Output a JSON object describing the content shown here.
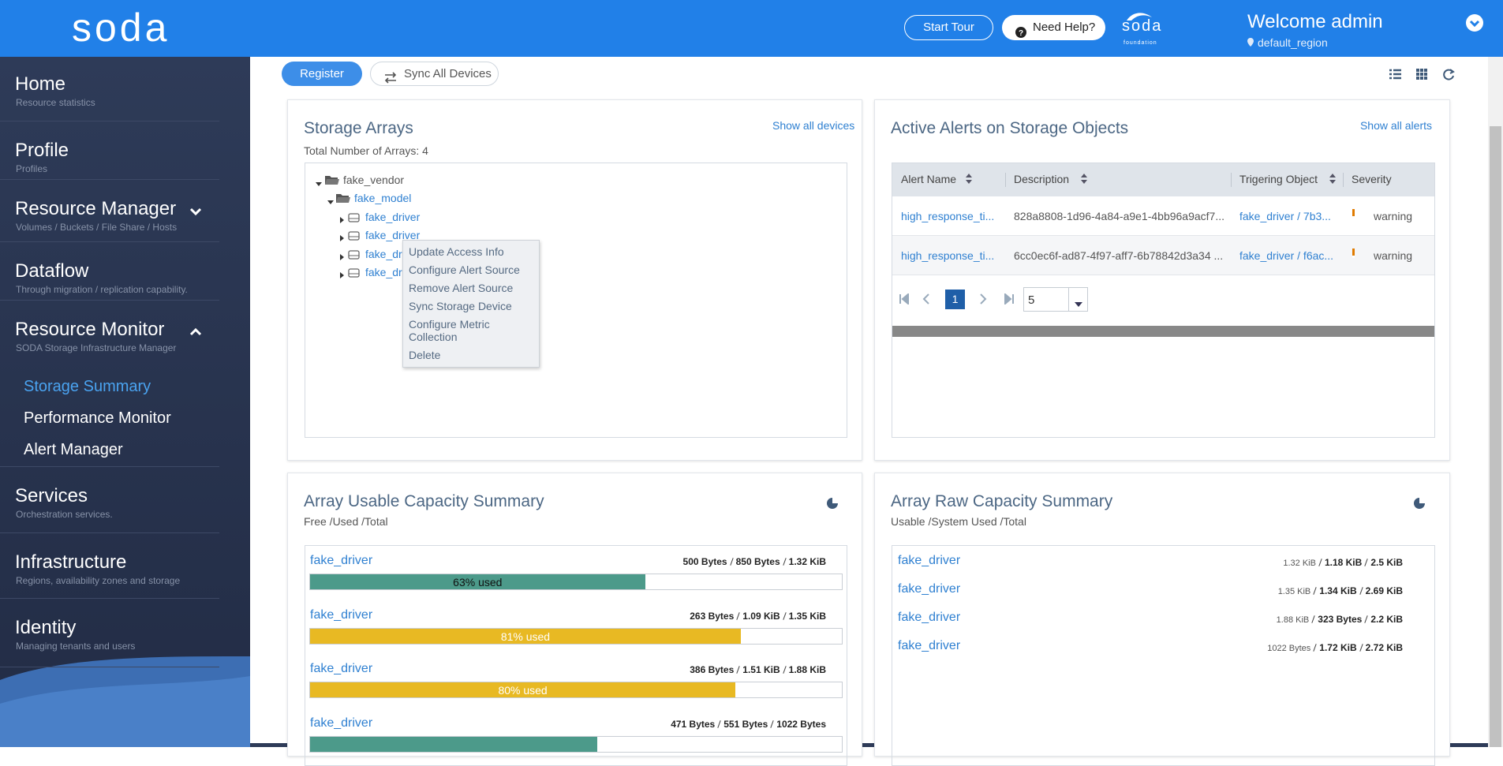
{
  "header": {
    "logo": "soda",
    "start_tour": "Start Tour",
    "need_help": "Need Help?",
    "foundation_logo": "soda",
    "foundation_sub": "foundation",
    "welcome": "Welcome admin",
    "region": "default_region"
  },
  "sidebar": {
    "items": [
      {
        "title": "Home",
        "subtitle": "Resource statistics"
      },
      {
        "title": "Profile",
        "subtitle": "Profiles"
      },
      {
        "title": "Resource Manager",
        "subtitle": "Volumes / Buckets / File Share / Hosts"
      },
      {
        "title": "Dataflow",
        "subtitle": "Through migration / replication capability."
      },
      {
        "title": "Resource Monitor",
        "subtitle": "SODA Storage Infrastructure Manager",
        "children": [
          "Storage Summary",
          "Performance Monitor",
          "Alert Manager"
        ]
      },
      {
        "title": "Services",
        "subtitle": "Orchestration services."
      },
      {
        "title": "Infrastructure",
        "subtitle": "Regions, availability zones and storage"
      },
      {
        "title": "Identity",
        "subtitle": "Managing tenants and users"
      }
    ]
  },
  "toolbar": {
    "register": "Register",
    "sync_all": "Sync All Devices"
  },
  "storage_arrays": {
    "title": "Storage Arrays",
    "link": "Show all devices",
    "subtitle": "Total Number of Arrays: 4",
    "vendor": "fake_vendor",
    "model": "fake_model",
    "drivers": [
      "fake_driver",
      "fake_driver",
      "fake_driver",
      "fake_driver"
    ],
    "context_menu": [
      "Update Access Info",
      "Configure Alert Source",
      "Remove Alert Source",
      "Sync Storage Device",
      "Configure Metric Collection",
      "Delete"
    ]
  },
  "alerts": {
    "title": "Active Alerts on Storage Objects",
    "link": "Show all alerts",
    "columns": [
      "Alert Name",
      "Description",
      "Trigering Object",
      "Severity"
    ],
    "rows": [
      [
        "high_response_ti...",
        "828a8808-1d96-4a84-a9e1-4bb96a9acf7...",
        "fake_driver / 7b3...",
        "warning"
      ],
      [
        "high_response_ti...",
        "6cc0ec6f-ad87-4f97-aff7-6b78842d3a34 ...",
        "fake_driver / f6ac...",
        "warning"
      ]
    ],
    "page": "1",
    "page_size": "5"
  },
  "usable": {
    "title": "Array Usable Capacity Summary",
    "subtitle": "Free /Used /Total",
    "rows": [
      {
        "name": "fake_driver",
        "free": "500 Bytes",
        "used": "850 Bytes",
        "total": "1.32 KiB",
        "percent": 63,
        "label": "63% used",
        "color": "#4c9a8a"
      },
      {
        "name": "fake_driver",
        "free": "263 Bytes",
        "used": "1.09 KiB",
        "total": "1.35 KiB",
        "percent": 81,
        "label": "81% used",
        "color": "#e8b923"
      },
      {
        "name": "fake_driver",
        "free": "386 Bytes",
        "used": "1.51 KiB",
        "total": "1.88 KiB",
        "percent": 80,
        "label": "80% used",
        "color": "#e8b923"
      },
      {
        "name": "fake_driver",
        "free": "471 Bytes",
        "used": "551 Bytes",
        "total": "1022 Bytes",
        "percent": 54,
        "color": "#4c9a8a"
      }
    ]
  },
  "raw": {
    "title": "Array Raw Capacity Summary",
    "subtitle": "Usable /System Used /Total",
    "rows": [
      {
        "name": "fake_driver",
        "usable": "1.32 KiB",
        "system_used": "1.18 KiB",
        "total": "2.5 KiB"
      },
      {
        "name": "fake_driver",
        "usable": "1.35 KiB",
        "system_used": "1.34 KiB",
        "total": "2.69 KiB"
      },
      {
        "name": "fake_driver",
        "usable": "1.88 KiB",
        "system_used": "323 Bytes",
        "total": "2.2 KiB"
      },
      {
        "name": "fake_driver",
        "usable": "1022 Bytes",
        "system_used": "1.72 KiB",
        "total": "2.72 KiB"
      }
    ]
  }
}
